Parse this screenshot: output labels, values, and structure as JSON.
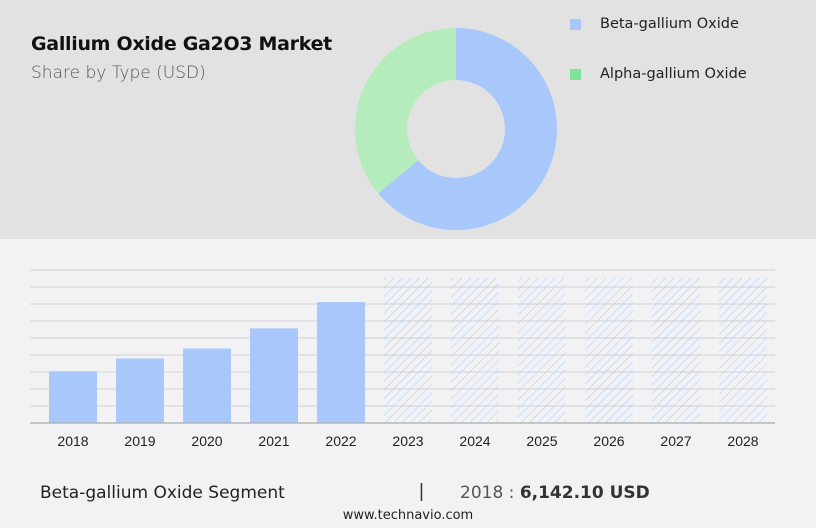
{
  "header": {
    "title": "Gallium Oxide Ga2O3 Market",
    "subtitle": "Share by Type (USD)"
  },
  "legend": [
    {
      "label": "Beta-gallium Oxide",
      "color": "#a8c8fc"
    },
    {
      "label": "Alpha-gallium Oxide",
      "color": "#7ee29a"
    }
  ],
  "footer": {
    "segment_label": "Beta-gallium Oxide Segment",
    "divider": "|",
    "year": "2018",
    "separator": " : ",
    "value": "6,142.10 USD",
    "website": "www.technavio.com"
  },
  "chart_data": [
    {
      "type": "pie",
      "title": "Share by Type (USD)",
      "style": "donut",
      "labels": [
        "Beta-gallium Oxide",
        "Alpha-gallium Oxide"
      ],
      "values": [
        64,
        36
      ],
      "colors": [
        "#a8c8fc",
        "#b4ecbc"
      ],
      "legend_position": "right"
    },
    {
      "type": "bar",
      "title": "Beta-gallium Oxide Segment",
      "categories": [
        "2018",
        "2019",
        "2020",
        "2021",
        "2022",
        "2023",
        "2024",
        "2025",
        "2026",
        "2027",
        "2028"
      ],
      "values": [
        6142.1,
        7660,
        8850,
        11240,
        14360,
        null,
        null,
        null,
        null,
        null,
        null
      ],
      "forecast_categories": [
        "2023",
        "2024",
        "2025",
        "2026",
        "2027",
        "2028"
      ],
      "forecast_style": "hatched",
      "xlabel": "",
      "ylabel": "",
      "grid": true,
      "color": "#a8c8fc"
    }
  ]
}
